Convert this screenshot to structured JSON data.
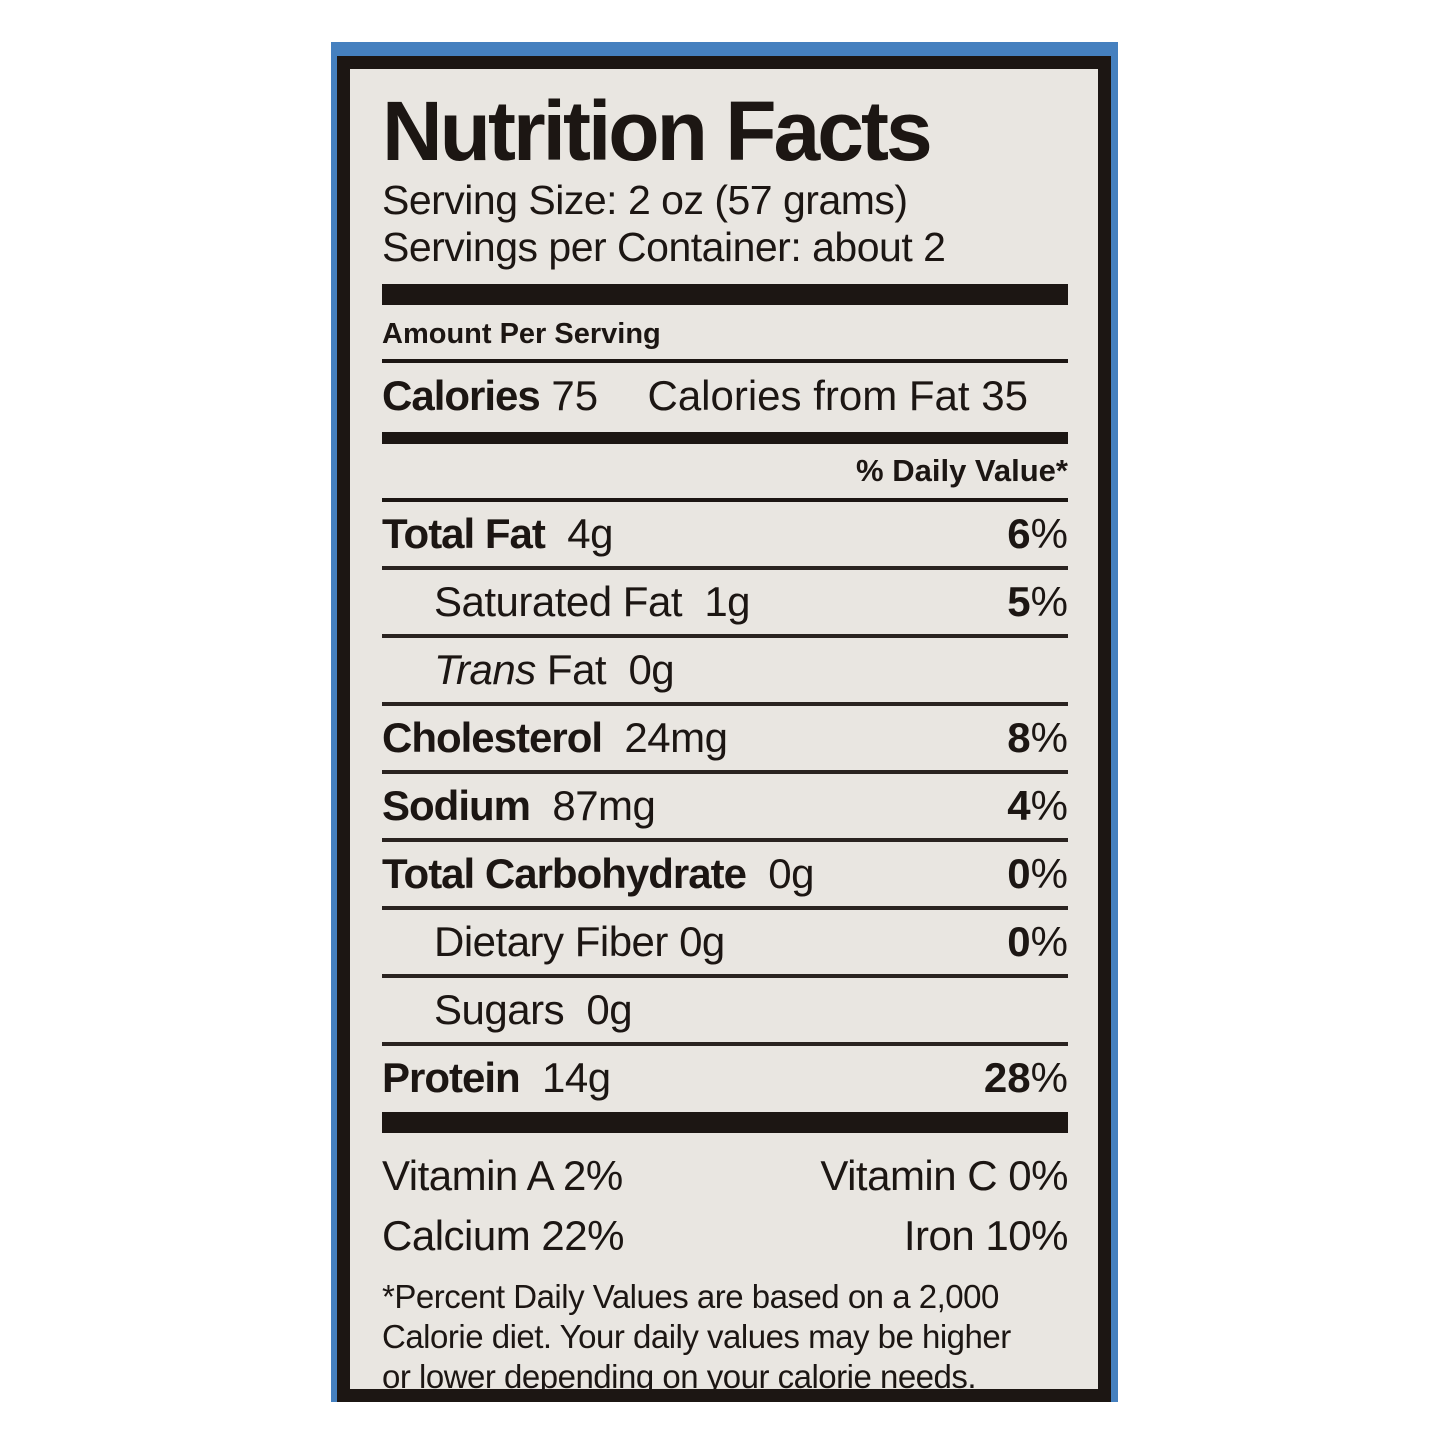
{
  "colors": {
    "package_blue": "#4580bf",
    "label_background": "#e9e6e1",
    "ink": "#1c1613"
  },
  "label": {
    "title": "Nutrition Facts",
    "serving_size": "Serving Size: 2 oz (57 grams)",
    "servings_per_container": "Servings per Container: about 2",
    "amount_per_serving": "Amount Per Serving",
    "calories": {
      "label": "Calories",
      "value": "75",
      "from_fat_label": "Calories from Fat",
      "from_fat_value": "35"
    },
    "daily_value_header": "% Daily Value*",
    "rows": [
      {
        "name": "Total Fat",
        "amount": "4g",
        "dv_num": "6",
        "dv_pct": "%"
      },
      {
        "name": "Saturated Fat",
        "amount": "1g",
        "dv_num": "5",
        "dv_pct": "%"
      },
      {
        "name_italic": "Trans",
        "name": " Fat",
        "amount": "0g"
      },
      {
        "name": "Cholesterol",
        "amount": "24mg",
        "dv_num": "8",
        "dv_pct": "%"
      },
      {
        "name": "Sodium",
        "amount": "87mg",
        "dv_num": "4",
        "dv_pct": "%"
      },
      {
        "name": "Total Carbohydrate",
        "amount": "0g",
        "dv_num": "0",
        "dv_pct": "%"
      },
      {
        "name": "Dietary Fiber",
        "amount": "0g",
        "dv_num": "0",
        "dv_pct": "%"
      },
      {
        "name": "Sugars",
        "amount": "0g"
      },
      {
        "name": "Protein",
        "amount": "14g",
        "dv_num": "28",
        "dv_pct": "%"
      }
    ],
    "vitamins": [
      {
        "left": "Vitamin A 2%",
        "right": "Vitamin C  0%"
      },
      {
        "left": "Calcium  22%",
        "right": "Iron  10%"
      }
    ],
    "footnote_line1": "*Percent Daily Values are based on a 2,000",
    "footnote_line2": "Calorie diet. Your daily values may be higher",
    "footnote_line3": "or lower depending on your calorie needs."
  }
}
